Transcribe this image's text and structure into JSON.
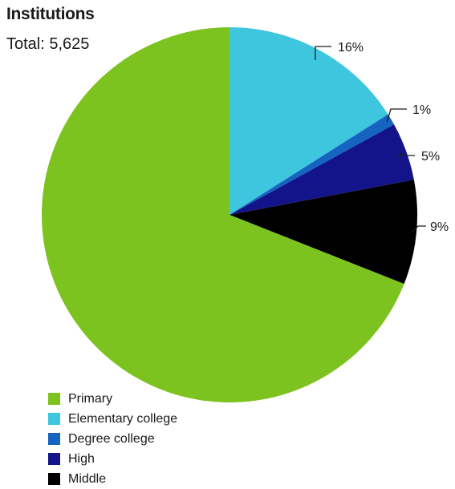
{
  "chart_data": {
    "type": "pie",
    "title": "Institutions",
    "subtitle": "Total: 5,625",
    "legend_position": "bottom-left",
    "slices": [
      {
        "name": "Elementary college",
        "value": 16,
        "label": "16%",
        "color": "#3ec6de"
      },
      {
        "name": "Degree college",
        "value": 1,
        "label": "1%",
        "color": "#1565c0"
      },
      {
        "name": "High",
        "value": 5,
        "label": "5%",
        "color": "#14148a"
      },
      {
        "name": "Middle",
        "value": 9,
        "label": "9%",
        "color": "#000000"
      },
      {
        "name": "Primary",
        "value": 69,
        "label": "",
        "color": "#7dc31f"
      }
    ],
    "legend": [
      {
        "name": "Primary",
        "color": "#7dc31f"
      },
      {
        "name": "Elementary college",
        "color": "#3ec6de"
      },
      {
        "name": "Degree college",
        "color": "#1565c0"
      },
      {
        "name": "High",
        "color": "#14148a"
      },
      {
        "name": "Middle",
        "color": "#000000"
      }
    ]
  }
}
